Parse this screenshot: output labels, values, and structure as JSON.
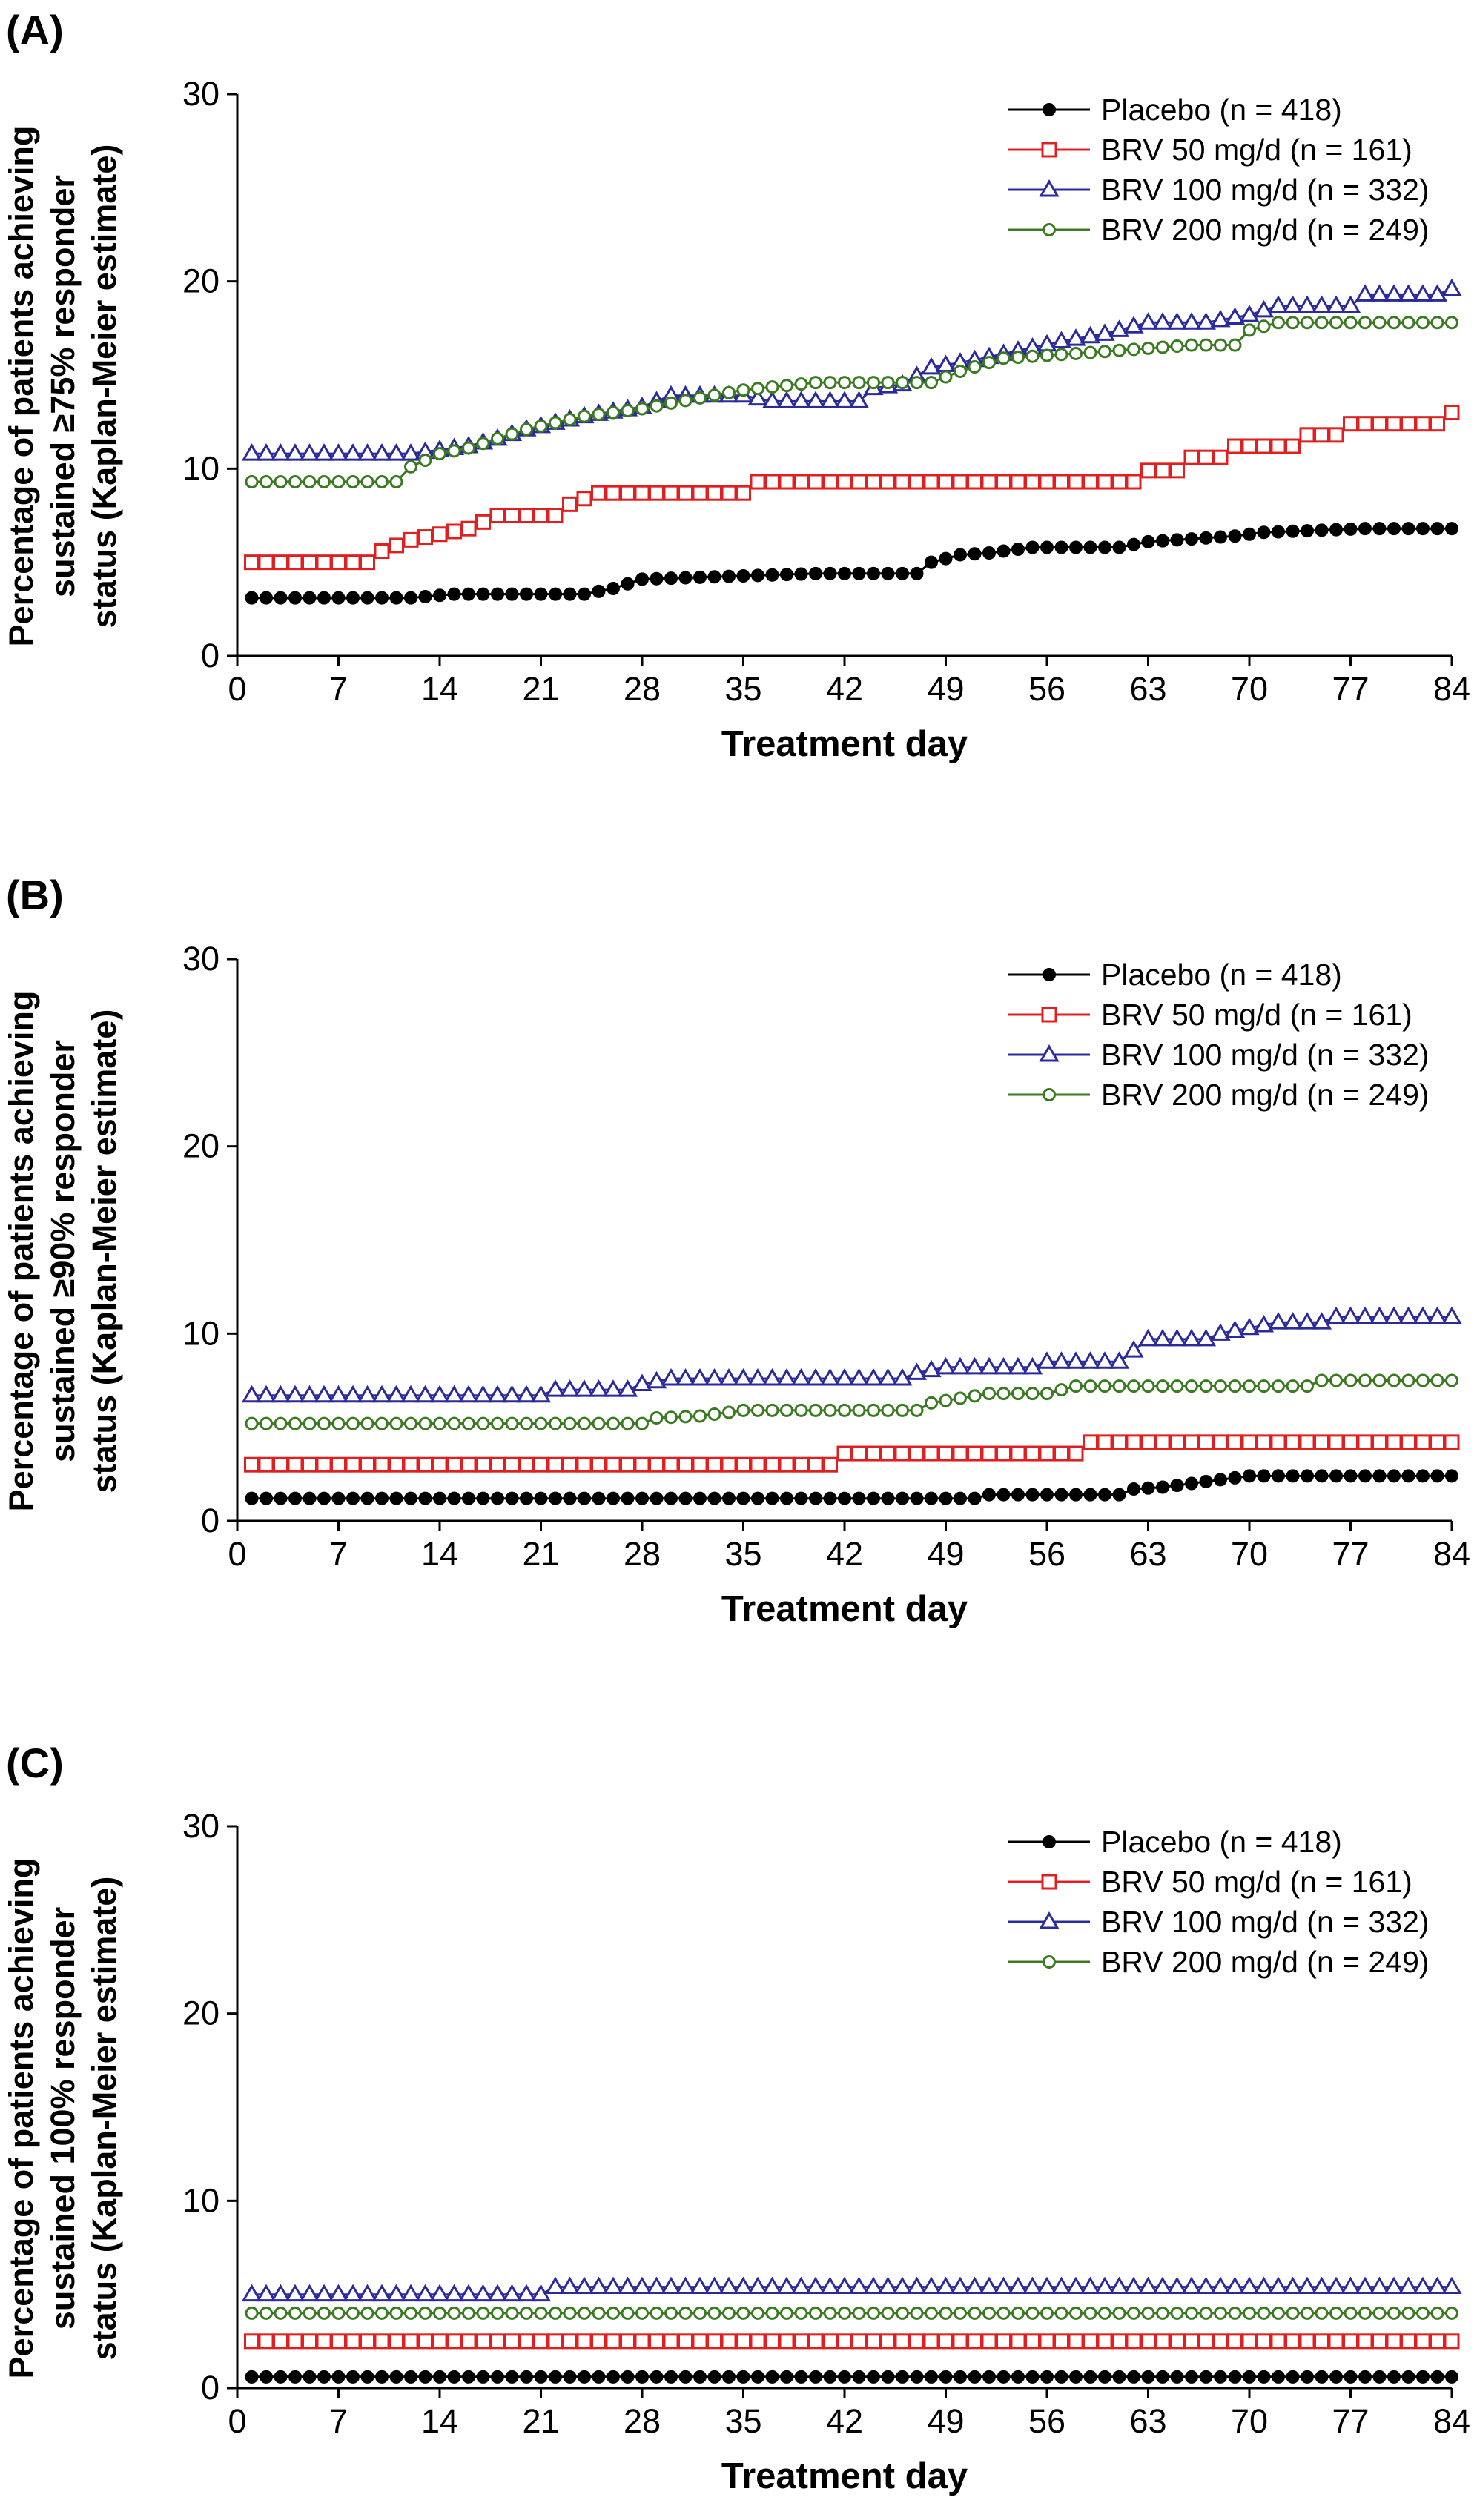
{
  "chart_data": [
    {
      "type": "line",
      "panel_label": "(A)",
      "title": "",
      "xlabel": "Treatment day",
      "ylabel": "Percentage of patients achieving sustained ≥75% responder status (Kaplan-Meier estimate)",
      "ylabel_lines": [
        "Percentage of patients achieving",
        "sustained ≥75% responder",
        "status (Kaplan-Meier estimate)"
      ],
      "xlim": [
        0,
        84
      ],
      "ylim": [
        0,
        30
      ],
      "xticks": [
        0,
        7,
        14,
        21,
        28,
        35,
        42,
        49,
        56,
        63,
        70,
        77,
        84
      ],
      "yticks": [
        0,
        10,
        20,
        30
      ],
      "grid": false,
      "legend_position": "top-right",
      "series": [
        {
          "name": "Placebo (n = 418)",
          "color": "#000000",
          "marker": "filled-circle",
          "x": [
            1,
            12,
            15,
            24,
            26,
            28,
            40,
            47,
            48,
            50,
            52,
            55,
            61,
            63,
            69,
            71,
            78,
            84
          ],
          "y": [
            3.1,
            3.1,
            3.3,
            3.3,
            3.6,
            4.1,
            4.4,
            4.4,
            5.0,
            5.4,
            5.5,
            5.8,
            5.8,
            6.1,
            6.4,
            6.6,
            6.8,
            6.8
          ]
        },
        {
          "name": "BRV 50 mg/d (n = 161)",
          "color": "#e02020",
          "marker": "open-square",
          "x": [
            1,
            9,
            10,
            12,
            16,
            18,
            22,
            23,
            25,
            35,
            36,
            62,
            63,
            65,
            66,
            68,
            69,
            71,
            73,
            74,
            76,
            77,
            78,
            83,
            84
          ],
          "y": [
            5.0,
            5.0,
            5.6,
            6.2,
            6.8,
            7.5,
            7.5,
            8.1,
            8.7,
            8.7,
            9.3,
            9.3,
            9.9,
            9.9,
            10.6,
            10.6,
            11.2,
            11.2,
            11.2,
            11.8,
            11.8,
            12.4,
            12.4,
            12.4,
            13.0
          ]
        },
        {
          "name": "BRV 100 mg/d (n = 332)",
          "color": "#2a2a9c",
          "marker": "open-triangle",
          "x": [
            1,
            12,
            14,
            16,
            18,
            20,
            24,
            28,
            30,
            35,
            37,
            43,
            44,
            46,
            48,
            51,
            54,
            57,
            60,
            63,
            67,
            70,
            72,
            77,
            78,
            83,
            84
          ],
          "y": [
            10.8,
            10.8,
            11.0,
            11.2,
            11.6,
            12.1,
            12.8,
            13.3,
            13.9,
            13.9,
            13.6,
            13.6,
            14.3,
            14.5,
            15.4,
            15.8,
            16.3,
            16.8,
            17.2,
            17.8,
            17.8,
            18.2,
            18.7,
            18.7,
            19.3,
            19.3,
            19.6
          ]
        },
        {
          "name": "BRV 200 mg/d (n = 249)",
          "color": "#3a7a20",
          "marker": "open-circle",
          "x": [
            1,
            11,
            12,
            14,
            16,
            20,
            24,
            28,
            30,
            35,
            40,
            48,
            50,
            53,
            59,
            66,
            69,
            70,
            72,
            84
          ],
          "y": [
            9.3,
            9.3,
            10.1,
            10.8,
            11.1,
            12.1,
            12.8,
            13.2,
            13.5,
            14.2,
            14.6,
            14.6,
            15.2,
            15.9,
            16.2,
            16.6,
            16.6,
            17.4,
            17.8,
            17.8
          ]
        }
      ]
    },
    {
      "type": "line",
      "panel_label": "(B)",
      "title": "",
      "xlabel": "Treatment day",
      "ylabel": "Percentage of patients achieving sustained ≥90% responder status (Kaplan-Meier estimate)",
      "ylabel_lines": [
        "Percentage of patients achieving",
        "sustained ≥90% responder",
        "status (Kaplan-Meier estimate)"
      ],
      "xlim": [
        0,
        84
      ],
      "ylim": [
        0,
        30
      ],
      "xticks": [
        0,
        7,
        14,
        21,
        28,
        35,
        42,
        49,
        56,
        63,
        70,
        77,
        84
      ],
      "yticks": [
        0,
        10,
        20,
        30
      ],
      "grid": false,
      "legend_position": "top-right",
      "series": [
        {
          "name": "Placebo (n = 418)",
          "color": "#000000",
          "marker": "filled-circle",
          "x": [
            1,
            51,
            52,
            61,
            62,
            64,
            66,
            68,
            69,
            70,
            84
          ],
          "y": [
            1.2,
            1.2,
            1.4,
            1.4,
            1.7,
            1.8,
            2.0,
            2.2,
            2.3,
            2.4,
            2.4
          ]
        },
        {
          "name": "BRV 50 mg/d (n = 161)",
          "color": "#e02020",
          "marker": "open-square",
          "x": [
            1,
            41,
            42,
            58,
            59,
            84
          ],
          "y": [
            3.0,
            3.0,
            3.6,
            3.6,
            4.2,
            4.2
          ]
        },
        {
          "name": "BRV 100 mg/d (n = 332)",
          "color": "#2a2a9c",
          "marker": "open-triangle",
          "x": [
            1,
            21,
            22,
            27,
            28,
            30,
            46,
            47,
            49,
            55,
            56,
            61,
            62,
            63,
            67,
            68,
            70,
            72,
            75,
            76,
            84
          ],
          "y": [
            6.7,
            6.7,
            7.0,
            7.0,
            7.3,
            7.6,
            7.6,
            7.9,
            8.2,
            8.2,
            8.5,
            8.5,
            9.1,
            9.7,
            9.7,
            10.0,
            10.3,
            10.6,
            10.6,
            10.9,
            10.9
          ]
        },
        {
          "name": "BRV 200 mg/d (n = 249)",
          "color": "#3a7a20",
          "marker": "open-circle",
          "x": [
            1,
            28,
            29,
            32,
            35,
            47,
            48,
            52,
            56,
            58,
            74,
            75,
            84
          ],
          "y": [
            5.2,
            5.2,
            5.5,
            5.6,
            5.9,
            5.9,
            6.3,
            6.8,
            6.8,
            7.2,
            7.2,
            7.5,
            7.5
          ]
        }
      ]
    },
    {
      "type": "line",
      "panel_label": "(C)",
      "title": "",
      "xlabel": "Treatment day",
      "ylabel": "Percentage of patients achieving sustained 100% responder status (Kaplan-Meier estimate)",
      "ylabel_lines": [
        "Percentage of patients achieving",
        "sustained 100% responder",
        "status (Kaplan-Meier estimate)"
      ],
      "xlim": [
        0,
        84
      ],
      "ylim": [
        0,
        30
      ],
      "xticks": [
        0,
        7,
        14,
        21,
        28,
        35,
        42,
        49,
        56,
        63,
        70,
        77,
        84
      ],
      "yticks": [
        0,
        10,
        20,
        30
      ],
      "grid": false,
      "legend_position": "top-right",
      "series": [
        {
          "name": "Placebo (n = 418)",
          "color": "#000000",
          "marker": "filled-circle",
          "x": [
            1,
            84
          ],
          "y": [
            0.6,
            0.6
          ]
        },
        {
          "name": "BRV 50 mg/d (n = 161)",
          "color": "#e02020",
          "marker": "open-square",
          "x": [
            1,
            84
          ],
          "y": [
            2.5,
            2.5
          ]
        },
        {
          "name": "BRV 100 mg/d (n = 332)",
          "color": "#2a2a9c",
          "marker": "open-triangle",
          "x": [
            1,
            21,
            22,
            84
          ],
          "y": [
            5.0,
            5.0,
            5.4,
            5.4
          ]
        },
        {
          "name": "BRV 200 mg/d (n = 249)",
          "color": "#3a7a20",
          "marker": "open-circle",
          "x": [
            1,
            84
          ],
          "y": [
            4.0,
            4.0
          ]
        }
      ]
    }
  ]
}
